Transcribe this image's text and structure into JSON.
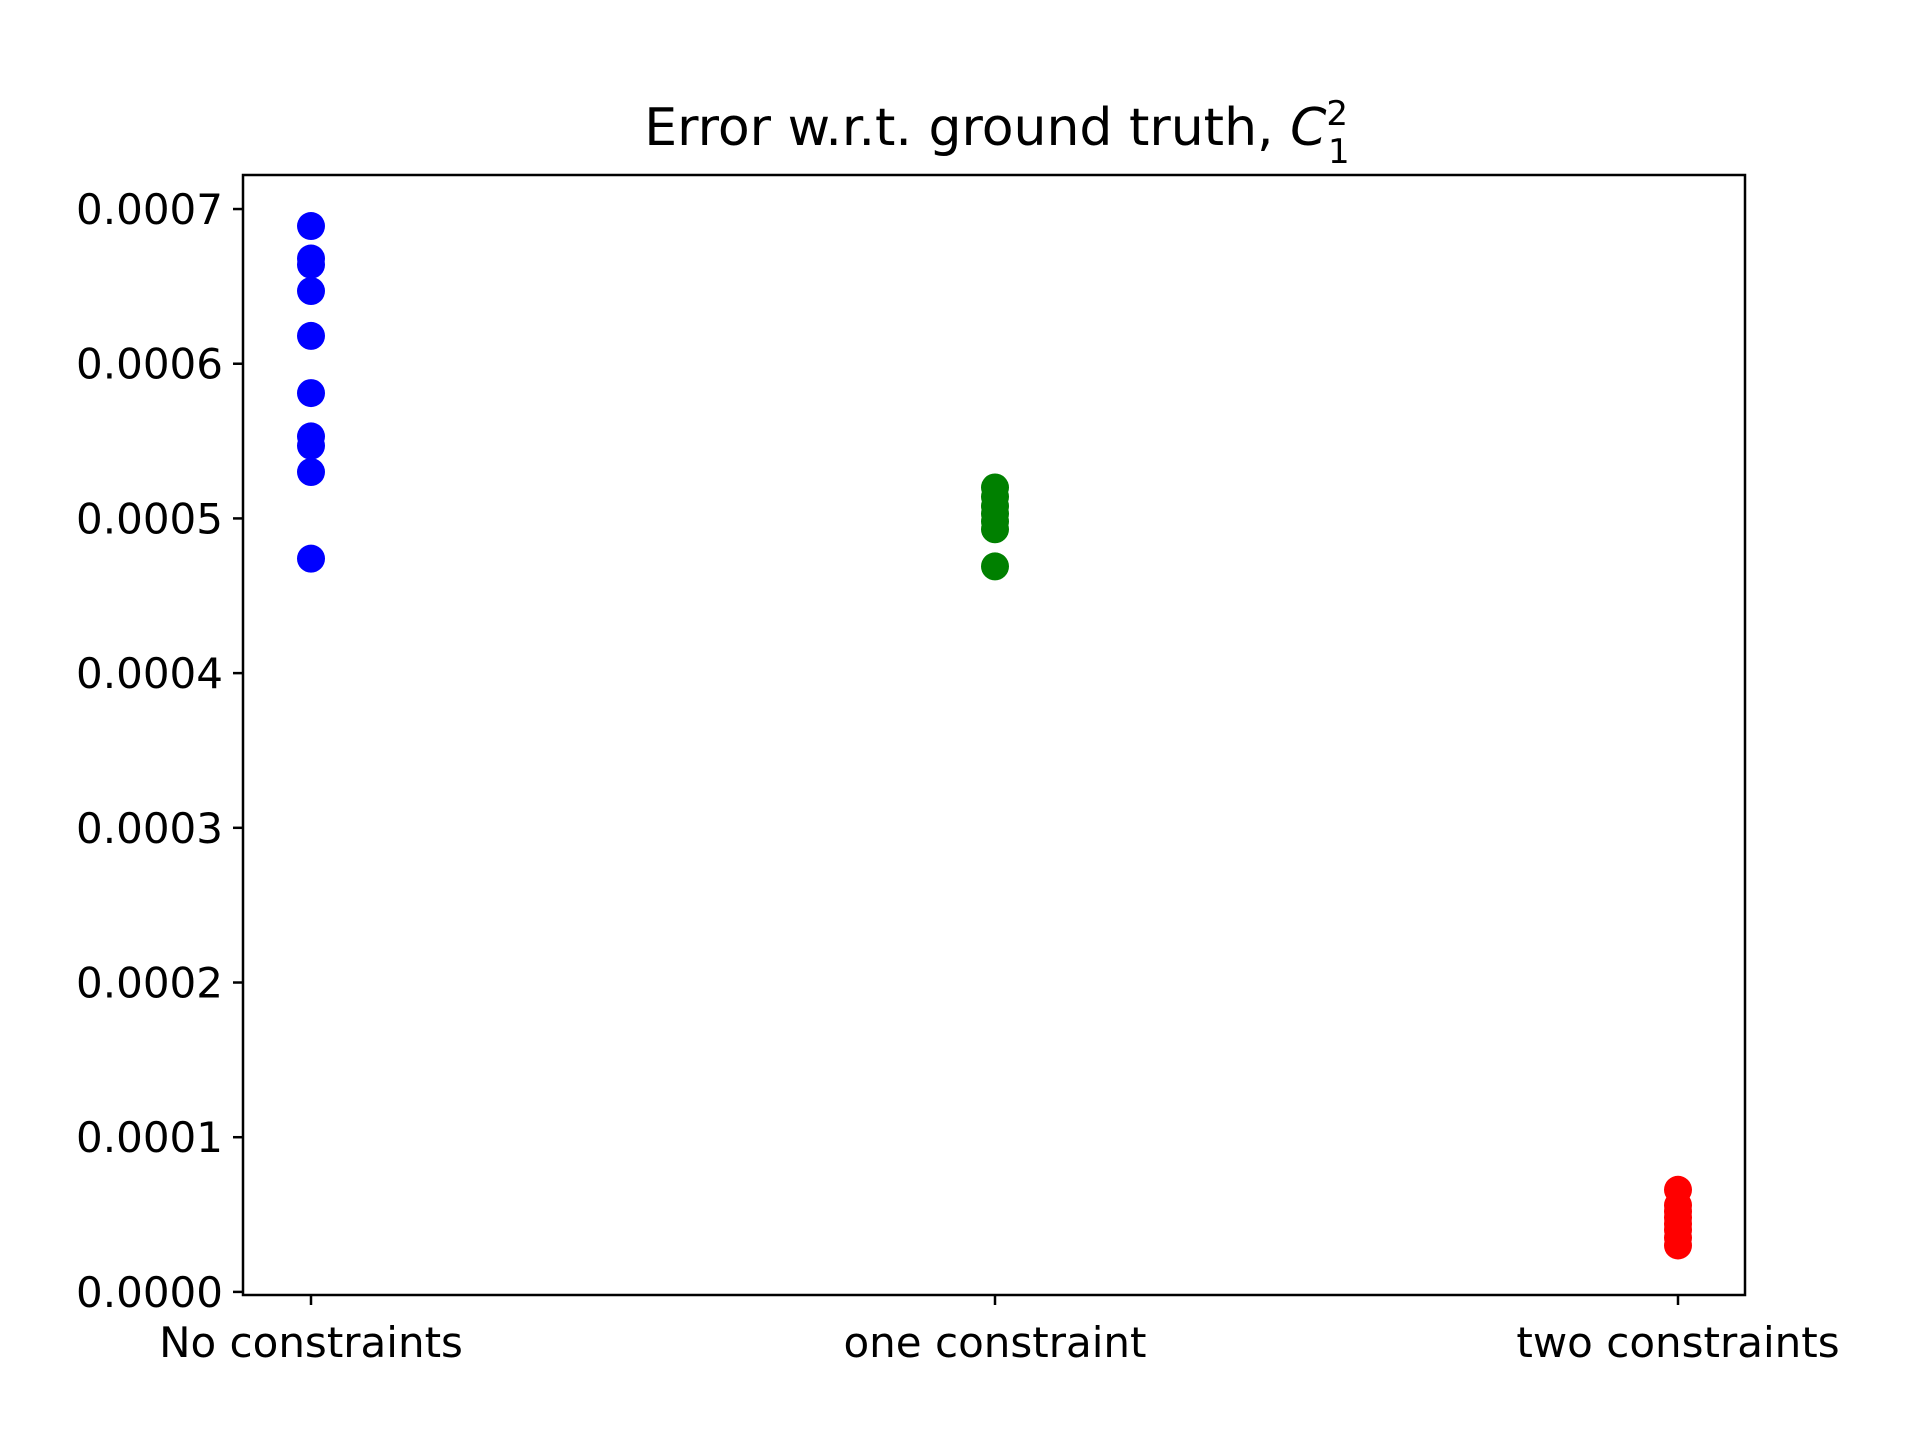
{
  "chart_data": {
    "type": "scatter",
    "title": {
      "main": "Error w.r.t. ground truth, ",
      "symbol": "C",
      "superscript": "2",
      "subscript": "1"
    },
    "xlabel": "",
    "ylabel": "",
    "categories": [
      "No constraints",
      "one constraint",
      "two constraints"
    ],
    "ylim": [
      -2e-06,
      0.000722
    ],
    "yticks": [
      0.0,
      0.0001,
      0.0002,
      0.0003,
      0.0004,
      0.0005,
      0.0006,
      0.0007
    ],
    "ytick_labels": [
      "0.0000",
      "0.0001",
      "0.0002",
      "0.0003",
      "0.0004",
      "0.0005",
      "0.0006",
      "0.0007"
    ],
    "grid": false,
    "series": [
      {
        "category": "No constraints",
        "color": "#0000ff",
        "values": [
          0.000689,
          0.000668,
          0.000664,
          0.000647,
          0.000618,
          0.000581,
          0.000553,
          0.000547,
          0.00053,
          0.000474
        ]
      },
      {
        "category": "one constraint",
        "color": "#008000",
        "values": [
          0.00052,
          0.000514,
          0.000508,
          0.000503,
          0.000498,
          0.000493,
          0.000469
        ]
      },
      {
        "category": "two constraints",
        "color": "#ff0000",
        "values": [
          6.6e-05,
          5.6e-05,
          5.2e-05,
          4.8e-05,
          4.4e-05,
          4e-05,
          3.5e-05,
          3e-05
        ]
      }
    ]
  }
}
